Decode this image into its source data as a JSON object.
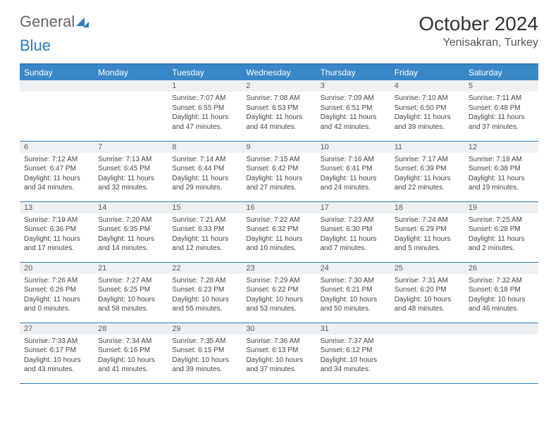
{
  "logo": {
    "text1": "General",
    "text2": "Blue"
  },
  "title": "October 2024",
  "location": "Yenisakran, Turkey",
  "colors": {
    "header_bg": "#3a87c7",
    "header_border": "#2f7bbf",
    "daynum_bg": "#eef1f3",
    "text": "#333333"
  },
  "weekdays": [
    "Sunday",
    "Monday",
    "Tuesday",
    "Wednesday",
    "Thursday",
    "Friday",
    "Saturday"
  ],
  "weeks": [
    [
      null,
      null,
      {
        "n": "1",
        "sr": "Sunrise: 7:07 AM",
        "ss": "Sunset: 6:55 PM",
        "dl": "Daylight: 11 hours and 47 minutes."
      },
      {
        "n": "2",
        "sr": "Sunrise: 7:08 AM",
        "ss": "Sunset: 6:53 PM",
        "dl": "Daylight: 11 hours and 44 minutes."
      },
      {
        "n": "3",
        "sr": "Sunrise: 7:09 AM",
        "ss": "Sunset: 6:51 PM",
        "dl": "Daylight: 11 hours and 42 minutes."
      },
      {
        "n": "4",
        "sr": "Sunrise: 7:10 AM",
        "ss": "Sunset: 6:50 PM",
        "dl": "Daylight: 11 hours and 39 minutes."
      },
      {
        "n": "5",
        "sr": "Sunrise: 7:11 AM",
        "ss": "Sunset: 6:48 PM",
        "dl": "Daylight: 11 hours and 37 minutes."
      }
    ],
    [
      {
        "n": "6",
        "sr": "Sunrise: 7:12 AM",
        "ss": "Sunset: 6:47 PM",
        "dl": "Daylight: 11 hours and 34 minutes."
      },
      {
        "n": "7",
        "sr": "Sunrise: 7:13 AM",
        "ss": "Sunset: 6:45 PM",
        "dl": "Daylight: 11 hours and 32 minutes."
      },
      {
        "n": "8",
        "sr": "Sunrise: 7:14 AM",
        "ss": "Sunset: 6:44 PM",
        "dl": "Daylight: 11 hours and 29 minutes."
      },
      {
        "n": "9",
        "sr": "Sunrise: 7:15 AM",
        "ss": "Sunset: 6:42 PM",
        "dl": "Daylight: 11 hours and 27 minutes."
      },
      {
        "n": "10",
        "sr": "Sunrise: 7:16 AM",
        "ss": "Sunset: 6:41 PM",
        "dl": "Daylight: 11 hours and 24 minutes."
      },
      {
        "n": "11",
        "sr": "Sunrise: 7:17 AM",
        "ss": "Sunset: 6:39 PM",
        "dl": "Daylight: 11 hours and 22 minutes."
      },
      {
        "n": "12",
        "sr": "Sunrise: 7:18 AM",
        "ss": "Sunset: 6:38 PM",
        "dl": "Daylight: 11 hours and 19 minutes."
      }
    ],
    [
      {
        "n": "13",
        "sr": "Sunrise: 7:19 AM",
        "ss": "Sunset: 6:36 PM",
        "dl": "Daylight: 11 hours and 17 minutes."
      },
      {
        "n": "14",
        "sr": "Sunrise: 7:20 AM",
        "ss": "Sunset: 6:35 PM",
        "dl": "Daylight: 11 hours and 14 minutes."
      },
      {
        "n": "15",
        "sr": "Sunrise: 7:21 AM",
        "ss": "Sunset: 6:33 PM",
        "dl": "Daylight: 11 hours and 12 minutes."
      },
      {
        "n": "16",
        "sr": "Sunrise: 7:22 AM",
        "ss": "Sunset: 6:32 PM",
        "dl": "Daylight: 11 hours and 10 minutes."
      },
      {
        "n": "17",
        "sr": "Sunrise: 7:23 AM",
        "ss": "Sunset: 6:30 PM",
        "dl": "Daylight: 11 hours and 7 minutes."
      },
      {
        "n": "18",
        "sr": "Sunrise: 7:24 AM",
        "ss": "Sunset: 6:29 PM",
        "dl": "Daylight: 11 hours and 5 minutes."
      },
      {
        "n": "19",
        "sr": "Sunrise: 7:25 AM",
        "ss": "Sunset: 6:28 PM",
        "dl": "Daylight: 11 hours and 2 minutes."
      }
    ],
    [
      {
        "n": "20",
        "sr": "Sunrise: 7:26 AM",
        "ss": "Sunset: 6:26 PM",
        "dl": "Daylight: 11 hours and 0 minutes."
      },
      {
        "n": "21",
        "sr": "Sunrise: 7:27 AM",
        "ss": "Sunset: 6:25 PM",
        "dl": "Daylight: 10 hours and 58 minutes."
      },
      {
        "n": "22",
        "sr": "Sunrise: 7:28 AM",
        "ss": "Sunset: 6:23 PM",
        "dl": "Daylight: 10 hours and 55 minutes."
      },
      {
        "n": "23",
        "sr": "Sunrise: 7:29 AM",
        "ss": "Sunset: 6:22 PM",
        "dl": "Daylight: 10 hours and 53 minutes."
      },
      {
        "n": "24",
        "sr": "Sunrise: 7:30 AM",
        "ss": "Sunset: 6:21 PM",
        "dl": "Daylight: 10 hours and 50 minutes."
      },
      {
        "n": "25",
        "sr": "Sunrise: 7:31 AM",
        "ss": "Sunset: 6:20 PM",
        "dl": "Daylight: 10 hours and 48 minutes."
      },
      {
        "n": "26",
        "sr": "Sunrise: 7:32 AM",
        "ss": "Sunset: 6:18 PM",
        "dl": "Daylight: 10 hours and 46 minutes."
      }
    ],
    [
      {
        "n": "27",
        "sr": "Sunrise: 7:33 AM",
        "ss": "Sunset: 6:17 PM",
        "dl": "Daylight: 10 hours and 43 minutes."
      },
      {
        "n": "28",
        "sr": "Sunrise: 7:34 AM",
        "ss": "Sunset: 6:16 PM",
        "dl": "Daylight: 10 hours and 41 minutes."
      },
      {
        "n": "29",
        "sr": "Sunrise: 7:35 AM",
        "ss": "Sunset: 6:15 PM",
        "dl": "Daylight: 10 hours and 39 minutes."
      },
      {
        "n": "30",
        "sr": "Sunrise: 7:36 AM",
        "ss": "Sunset: 6:13 PM",
        "dl": "Daylight: 10 hours and 37 minutes."
      },
      {
        "n": "31",
        "sr": "Sunrise: 7:37 AM",
        "ss": "Sunset: 6:12 PM",
        "dl": "Daylight: 10 hours and 34 minutes."
      },
      null,
      null
    ]
  ]
}
